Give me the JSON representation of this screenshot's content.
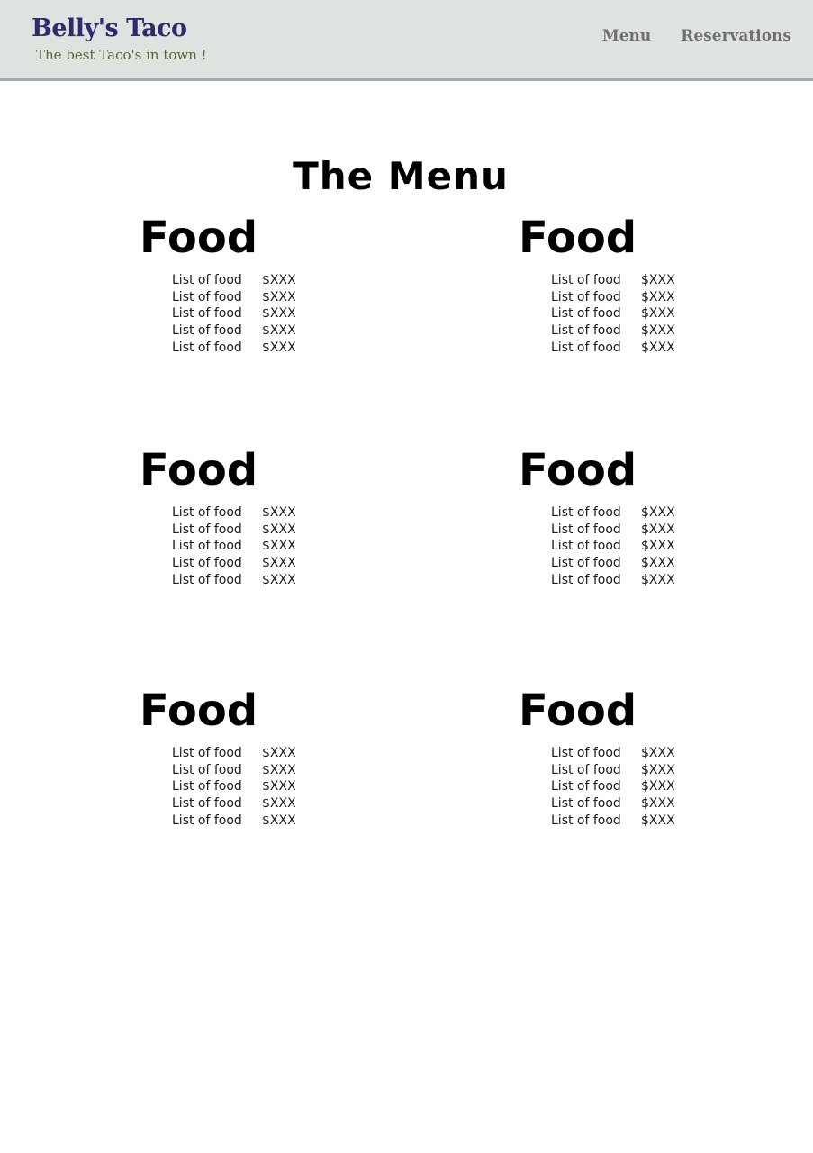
{
  "header": {
    "brand_name": "Belly's Taco",
    "tagline": "The best Taco's in town !",
    "nav": [
      {
        "label": "Menu"
      },
      {
        "label": "Reservations"
      }
    ]
  },
  "page_title": "The Menu",
  "colors": {
    "header_bg": "#dfe3df",
    "brand": "#2d2a6e",
    "tagline": "#5d6236",
    "nav": "#707070"
  },
  "sections": [
    {
      "title": "Food",
      "items": [
        {
          "name": "List of food",
          "price": "$XXX"
        },
        {
          "name": "List of food",
          "price": "$XXX"
        },
        {
          "name": "List of food",
          "price": "$XXX"
        },
        {
          "name": "List of food",
          "price": "$XXX"
        },
        {
          "name": "List of food",
          "price": "$XXX"
        }
      ]
    },
    {
      "title": "Food",
      "items": [
        {
          "name": "List of food",
          "price": "$XXX"
        },
        {
          "name": "List of food",
          "price": "$XXX"
        },
        {
          "name": "List of food",
          "price": "$XXX"
        },
        {
          "name": "List of food",
          "price": "$XXX"
        },
        {
          "name": "List of food",
          "price": "$XXX"
        }
      ]
    },
    {
      "title": "Food",
      "items": [
        {
          "name": "List of food",
          "price": "$XXX"
        },
        {
          "name": "List of food",
          "price": "$XXX"
        },
        {
          "name": "List of food",
          "price": "$XXX"
        },
        {
          "name": "List of food",
          "price": "$XXX"
        },
        {
          "name": "List of food",
          "price": "$XXX"
        }
      ]
    },
    {
      "title": "Food",
      "items": [
        {
          "name": "List of food",
          "price": "$XXX"
        },
        {
          "name": "List of food",
          "price": "$XXX"
        },
        {
          "name": "List of food",
          "price": "$XXX"
        },
        {
          "name": "List of food",
          "price": "$XXX"
        },
        {
          "name": "List of food",
          "price": "$XXX"
        }
      ]
    },
    {
      "title": "Food",
      "items": [
        {
          "name": "List of food",
          "price": "$XXX"
        },
        {
          "name": "List of food",
          "price": "$XXX"
        },
        {
          "name": "List of food",
          "price": "$XXX"
        },
        {
          "name": "List of food",
          "price": "$XXX"
        },
        {
          "name": "List of food",
          "price": "$XXX"
        }
      ]
    },
    {
      "title": "Food",
      "items": [
        {
          "name": "List of food",
          "price": "$XXX"
        },
        {
          "name": "List of food",
          "price": "$XXX"
        },
        {
          "name": "List of food",
          "price": "$XXX"
        },
        {
          "name": "List of food",
          "price": "$XXX"
        },
        {
          "name": "List of food",
          "price": "$XXX"
        }
      ]
    }
  ]
}
